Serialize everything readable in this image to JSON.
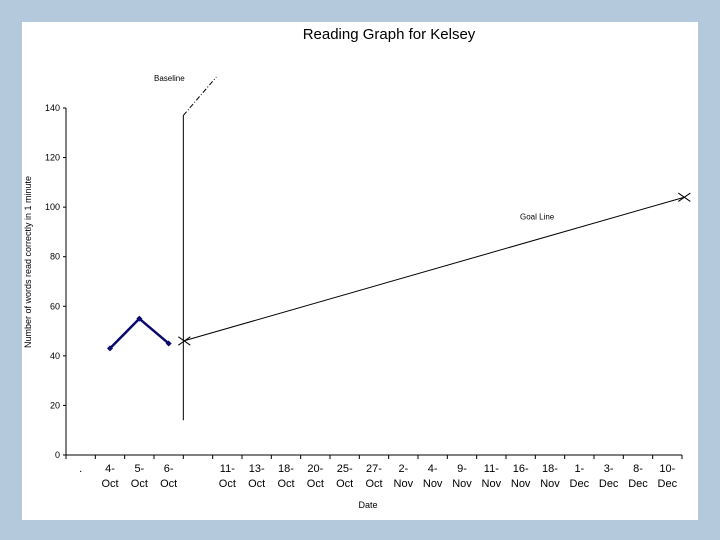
{
  "chart_data": {
    "type": "line",
    "title": "Reading Graph for Kelsey",
    "xlabel": "Date",
    "ylabel": "Number of words read correctly in 1 minute",
    "ylim": [
      0,
      140
    ],
    "yticks": [
      "0",
      "20",
      "40",
      "60",
      "80",
      "100",
      "120",
      "140"
    ],
    "categories": [
      [
        "."
      ],
      [
        "4-",
        "Oct"
      ],
      [
        "5-",
        "Oct"
      ],
      [
        "6-",
        "Oct"
      ],
      [
        "",
        ""
      ],
      [
        "11-",
        "Oct"
      ],
      [
        "13-",
        "Oct"
      ],
      [
        "18-",
        "Oct"
      ],
      [
        "20-",
        "Oct"
      ],
      [
        "25-",
        "Oct"
      ],
      [
        "27-",
        "Oct"
      ],
      [
        "2-",
        "Nov"
      ],
      [
        "4-",
        "Nov"
      ],
      [
        "9-",
        "Nov"
      ],
      [
        "11-",
        "Nov"
      ],
      [
        "16-",
        "Nov"
      ],
      [
        "18-",
        "Nov"
      ],
      [
        "1-",
        "Dec"
      ],
      [
        "3-",
        "Dec"
      ],
      [
        "8-",
        "Dec"
      ],
      [
        "10-",
        "Dec"
      ]
    ],
    "series": [
      {
        "values": [
          null,
          43,
          55,
          45,
          null,
          null,
          null,
          null,
          null,
          null,
          null,
          null,
          null,
          null,
          null,
          null,
          null,
          null,
          null,
          null,
          null
        ],
        "color": "#0a0a6e"
      }
    ],
    "annotations": {
      "baseline_label": "Baseline",
      "goal_label": "Goal Line",
      "baseline_after_index": 3,
      "goal_line": {
        "start_value": 46,
        "end_value": 104
      }
    },
    "grid": false,
    "legend": "none"
  }
}
